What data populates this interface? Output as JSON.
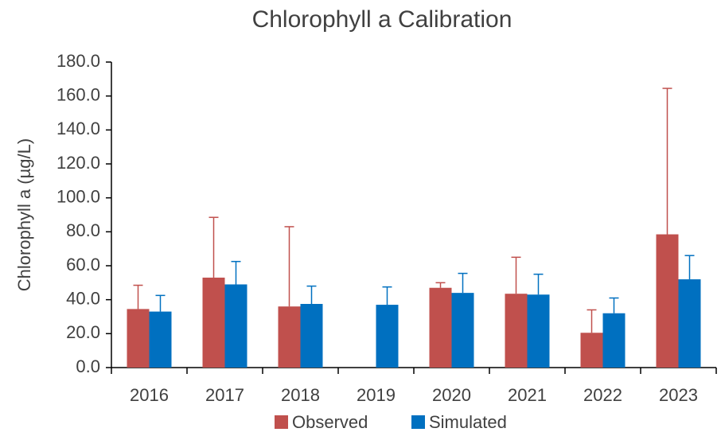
{
  "chart_data": {
    "type": "bar",
    "title": "Chlorophyll a Calibration",
    "y_label": "Chlorophyll a (µg/L)",
    "categories": [
      "2016",
      "2017",
      "2018",
      "2019",
      "2020",
      "2021",
      "2022",
      "2023"
    ],
    "series": [
      {
        "name": "Observed",
        "color": "#c0504d",
        "values": [
          34.5,
          53,
          36,
          null,
          47,
          43.5,
          20.5,
          78.5
        ],
        "errors": [
          14,
          35.5,
          47,
          null,
          3,
          21.5,
          13.5,
          86
        ]
      },
      {
        "name": "Simulated",
        "color": "#0070c0",
        "values": [
          33,
          49,
          37.5,
          37,
          44,
          43,
          32,
          52
        ],
        "errors": [
          9.5,
          13.5,
          10.5,
          10.5,
          11.5,
          12,
          9,
          14
        ]
      }
    ],
    "ylim": [
      0,
      180
    ],
    "yticks": [
      {
        "value": 0,
        "label": "0.0"
      },
      {
        "value": 20,
        "label": "20.0"
      },
      {
        "value": 40,
        "label": "40.0"
      },
      {
        "value": 60,
        "label": "60.0"
      },
      {
        "value": 80,
        "label": "80.0"
      },
      {
        "value": 100,
        "label": "100.0"
      },
      {
        "value": 120,
        "label": "120.0"
      },
      {
        "value": 140,
        "label": "140.0"
      },
      {
        "value": 160,
        "label": "160.0"
      },
      {
        "value": 180,
        "label": "180.0"
      }
    ],
    "grid": false,
    "legend": "bottom"
  }
}
